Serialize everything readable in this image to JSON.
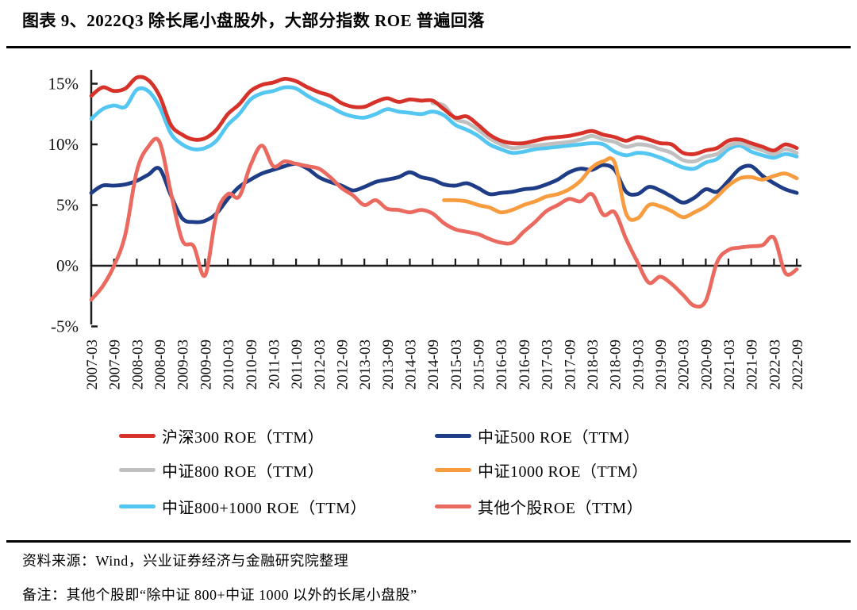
{
  "title": "图表 9、2022Q3 除长尾小盘股外，大部分指数 ROE 普遍回落",
  "source": "资料来源：Wind，兴业证券经济与金融研究院整理",
  "note": "备注：其他个股即“除中证 800+中证 1000 以外的长尾小盘股”",
  "chart_data": {
    "type": "line",
    "x_start": "2007-03",
    "x_step_months": 3,
    "points_per_series": 63,
    "x_tick_labels": [
      "2007-03",
      "2007-09",
      "2008-03",
      "2008-09",
      "2009-03",
      "2009-09",
      "2010-03",
      "2010-09",
      "2011-03",
      "2011-09",
      "2012-03",
      "2012-09",
      "2013-03",
      "2013-09",
      "2014-03",
      "2014-09",
      "2015-03",
      "2015-09",
      "2016-03",
      "2016-09",
      "2017-03",
      "2017-09",
      "2018-03",
      "2018-09",
      "2019-03",
      "2019-09",
      "2020-03",
      "2020-09",
      "2021-03",
      "2021-09",
      "2022-03",
      "2022-09"
    ],
    "y_ticks": [
      {
        "label": "15%",
        "value": 15
      },
      {
        "label": "10%",
        "value": 10
      },
      {
        "label": "5%",
        "value": 5
      },
      {
        "label": "0%",
        "value": 0
      },
      {
        "label": "-5%",
        "value": -5
      }
    ],
    "ylim": [
      -5,
      15.8
    ],
    "grid": false,
    "legend_position": "bottom",
    "axis_color": "#1a1a1a",
    "series": [
      {
        "name": "沪深300 ROE（TTM）",
        "color": "#D63229",
        "values": [
          14.0,
          14.7,
          14.4,
          14.6,
          15.5,
          15.3,
          14.0,
          11.6,
          10.8,
          10.4,
          10.5,
          11.2,
          12.5,
          13.3,
          14.4,
          14.9,
          15.1,
          15.4,
          15.2,
          14.7,
          14.3,
          14.0,
          13.4,
          13.1,
          13.1,
          13.5,
          13.8,
          13.5,
          13.7,
          13.6,
          13.6,
          12.9,
          12.2,
          12.3,
          11.6,
          10.8,
          10.3,
          10.1,
          10.1,
          10.3,
          10.5,
          10.6,
          10.7,
          10.9,
          11.1,
          10.8,
          10.6,
          10.3,
          10.6,
          10.4,
          10.1,
          10.0,
          9.3,
          9.2,
          9.5,
          9.7,
          10.3,
          10.4,
          10.1,
          9.8,
          9.5,
          10.0,
          9.7
        ]
      },
      {
        "name": "中证500 ROE（TTM）",
        "color": "#1F3C87",
        "values": [
          6.0,
          6.6,
          6.6,
          6.7,
          7.0,
          7.5,
          8.0,
          5.8,
          3.9,
          3.6,
          3.7,
          4.3,
          5.5,
          6.5,
          7.1,
          7.6,
          7.9,
          8.2,
          8.4,
          8.0,
          7.3,
          6.9,
          6.6,
          6.2,
          6.5,
          6.9,
          7.1,
          7.3,
          7.7,
          7.3,
          7.1,
          6.7,
          6.6,
          6.8,
          6.4,
          5.9,
          6.0,
          6.1,
          6.3,
          6.4,
          6.7,
          7.1,
          7.7,
          8.0,
          7.9,
          8.3,
          7.9,
          6.1,
          5.9,
          6.5,
          6.2,
          5.7,
          5.2,
          5.6,
          6.3,
          6.1,
          7.0,
          8.0,
          8.2,
          7.4,
          6.8,
          6.3,
          6.0
        ]
      },
      {
        "name": "中证800 ROE（TTM）",
        "color": "#C0C0C0",
        "values": [
          null,
          null,
          null,
          null,
          null,
          null,
          null,
          null,
          null,
          null,
          null,
          null,
          null,
          null,
          null,
          null,
          null,
          null,
          null,
          null,
          null,
          null,
          null,
          null,
          null,
          null,
          null,
          null,
          null,
          null,
          13.4,
          13.2,
          12.1,
          11.8,
          11.2,
          10.5,
          10.0,
          9.7,
          9.8,
          9.9,
          10.0,
          10.1,
          10.2,
          10.4,
          10.7,
          10.4,
          10.2,
          9.8,
          10.0,
          9.9,
          9.6,
          9.3,
          8.7,
          8.6,
          9.0,
          9.2,
          9.9,
          10.1,
          9.8,
          9.5,
          9.2,
          9.6,
          9.3
        ]
      },
      {
        "name": "中证1000 ROE（TTM）",
        "color": "#F89C40",
        "values": [
          null,
          null,
          null,
          null,
          null,
          null,
          null,
          null,
          null,
          null,
          null,
          null,
          null,
          null,
          null,
          null,
          null,
          null,
          null,
          null,
          null,
          null,
          null,
          null,
          null,
          null,
          null,
          null,
          null,
          null,
          null,
          5.4,
          5.4,
          5.3,
          5.0,
          4.8,
          4.4,
          4.6,
          5.0,
          5.3,
          5.7,
          5.9,
          6.3,
          7.0,
          8.1,
          8.6,
          8.5,
          4.3,
          3.9,
          5.0,
          4.9,
          4.5,
          4.0,
          4.4,
          4.9,
          5.7,
          6.6,
          7.2,
          7.3,
          7.1,
          7.4,
          7.6,
          7.2
        ]
      },
      {
        "name": "中证800+1000 ROE（TTM）",
        "color": "#54C6F2",
        "values": [
          12.1,
          12.9,
          13.2,
          13.1,
          14.5,
          14.4,
          13.1,
          10.9,
          10.0,
          9.6,
          9.7,
          10.3,
          11.6,
          12.5,
          13.7,
          14.2,
          14.4,
          14.7,
          14.6,
          14.0,
          13.5,
          13.1,
          12.6,
          12.3,
          12.2,
          12.5,
          12.9,
          12.7,
          12.6,
          12.5,
          12.7,
          12.4,
          11.6,
          11.2,
          10.7,
          10.0,
          9.6,
          9.3,
          9.4,
          9.6,
          9.7,
          9.8,
          9.9,
          10.0,
          10.1,
          10.0,
          9.4,
          9.1,
          9.3,
          9.2,
          8.9,
          8.5,
          8.1,
          8.0,
          8.5,
          8.8,
          9.6,
          9.9,
          9.4,
          9.1,
          8.9,
          9.2,
          9.0
        ]
      },
      {
        "name": "其他个股ROE（TTM）",
        "color": "#EB6A60",
        "values": [
          -2.8,
          -1.7,
          0.0,
          2.6,
          7.8,
          9.8,
          10.2,
          6.0,
          2.1,
          1.6,
          -0.8,
          4.2,
          5.9,
          5.7,
          8.3,
          9.9,
          8.2,
          8.6,
          8.4,
          8.2,
          8.0,
          7.3,
          6.4,
          5.8,
          5.0,
          5.4,
          4.7,
          4.6,
          4.4,
          4.6,
          4.3,
          3.5,
          3.0,
          2.8,
          2.6,
          2.2,
          1.9,
          1.9,
          2.8,
          3.6,
          4.5,
          5.0,
          5.5,
          5.3,
          5.9,
          4.2,
          4.4,
          2.2,
          0.3,
          -1.4,
          -0.9,
          -1.5,
          -2.4,
          -3.3,
          -2.9,
          0.3,
          1.3,
          1.5,
          1.6,
          1.7,
          2.3,
          -0.6,
          -0.3
        ]
      }
    ]
  }
}
